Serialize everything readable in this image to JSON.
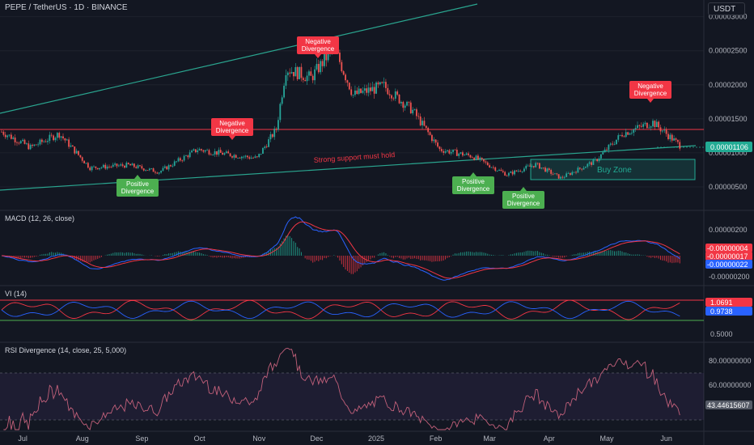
{
  "header": {
    "title": "PEPE / TetherUS · 1D · BINANCE",
    "currency": "USDT"
  },
  "colors": {
    "bg": "#131722",
    "grid": "#1e222d",
    "up": "#26a69a",
    "down": "#ef5350",
    "red": "#f23645",
    "green": "#22ab94",
    "text": "#b2b5be"
  },
  "panes": {
    "macd": {
      "label": "MACD (12, 26, close)",
      "ticks": [
        "0.00000200",
        "-0.00000200"
      ],
      "badges": [
        "-0.00000004",
        "-0.00000017",
        "-0.00000022"
      ]
    },
    "vi": {
      "label": "VI (14)",
      "ticks": [
        "0.5000"
      ],
      "badges": [
        "1.0691",
        "0.9738"
      ]
    },
    "rsi": {
      "label": "RSI Divergence (14, close, 25, 5,000)",
      "ticks": [
        "80.00000000",
        "60.00000000"
      ],
      "badges": [
        "43.44615607"
      ]
    }
  },
  "annotations": {
    "negative_divergence": "Negative Divergence",
    "positive_divergence": "Positive Divergence",
    "support": "Strong support must hold",
    "buy_zone": "Buy Zone"
  },
  "chart_data": {
    "type": "candlestick",
    "title": "PEPE / TetherUS · 1D · BINANCE",
    "y_axis_ticks": [
      "0.00003000",
      "0.00002500",
      "0.00002000",
      "0.00001500",
      "0.00001000",
      "0.00000500"
    ],
    "last_price": "0.00001106",
    "x_labels": [
      "Jul",
      "Aug",
      "Sep",
      "Oct",
      "Nov",
      "Dec",
      "2025",
      "Feb",
      "Mar",
      "Apr",
      "May",
      "Jun"
    ],
    "ylim": [
      2.5e-06,
      3.15e-05
    ],
    "approx_close_path": [
      {
        "date": "2024-06-20",
        "close": 1.31e-05
      },
      {
        "date": "2024-07-05",
        "close": 1.08e-05
      },
      {
        "date": "2024-07-20",
        "close": 1.28e-05
      },
      {
        "date": "2024-08-05",
        "close": 7.8e-06
      },
      {
        "date": "2024-08-25",
        "close": 8.2e-06
      },
      {
        "date": "2024-09-10",
        "close": 7.2e-06
      },
      {
        "date": "2024-09-30",
        "close": 1.05e-05
      },
      {
        "date": "2024-10-15",
        "close": 9.8e-06
      },
      {
        "date": "2024-10-31",
        "close": 9.2e-06
      },
      {
        "date": "2024-11-10",
        "close": 1.35e-05
      },
      {
        "date": "2024-11-15",
        "close": 2.24e-05
      },
      {
        "date": "2024-11-28",
        "close": 2.1e-05
      },
      {
        "date": "2024-12-10",
        "close": 2.55e-05
      },
      {
        "date": "2024-12-20",
        "close": 1.85e-05
      },
      {
        "date": "2025-01-05",
        "close": 1.98e-05
      },
      {
        "date": "2025-01-20",
        "close": 1.62e-05
      },
      {
        "date": "2025-02-03",
        "close": 1.05e-05
      },
      {
        "date": "2025-02-20",
        "close": 9.5e-06
      },
      {
        "date": "2025-03-10",
        "close": 6.8e-06
      },
      {
        "date": "2025-03-25",
        "close": 8.3e-06
      },
      {
        "date": "2025-04-07",
        "close": 6.3e-06
      },
      {
        "date": "2025-04-25",
        "close": 8.8e-06
      },
      {
        "date": "2025-05-09",
        "close": 1.28e-05
      },
      {
        "date": "2025-05-25",
        "close": 1.45e-05
      },
      {
        "date": "2025-06-08",
        "close": 1.11e-05
      }
    ],
    "series": [
      {
        "values_note": "MACD line / signal / histogram shown in lower pane"
      }
    ]
  }
}
